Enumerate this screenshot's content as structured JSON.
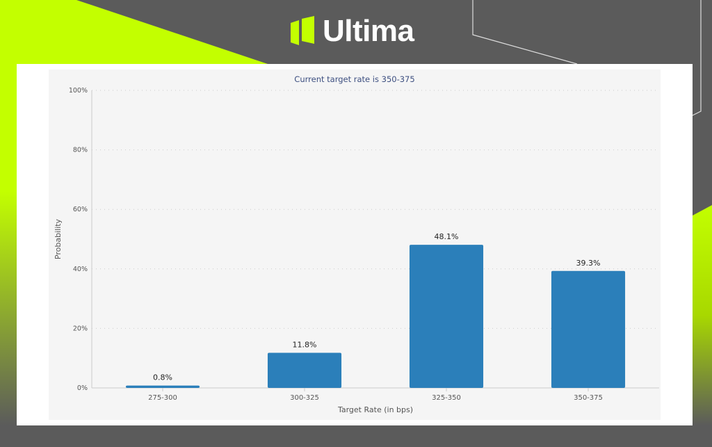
{
  "brand": {
    "name": "Ultima",
    "accent": "#c3ff00"
  },
  "chart_data": {
    "type": "bar",
    "title": "Current target rate is 350-375",
    "xlabel": "Target Rate (in bps)",
    "ylabel": "Probability",
    "categories": [
      "275-300",
      "300-325",
      "325-350",
      "350-375"
    ],
    "values": [
      0.8,
      11.8,
      48.1,
      39.3
    ],
    "data_labels": [
      "0.8%",
      "11.8%",
      "48.1%",
      "39.3%"
    ],
    "ylim": [
      0,
      100
    ],
    "yticks": [
      "0%",
      "20%",
      "40%",
      "60%",
      "80%",
      "100%"
    ],
    "grid": true,
    "bar_color": "#2b7fba"
  }
}
